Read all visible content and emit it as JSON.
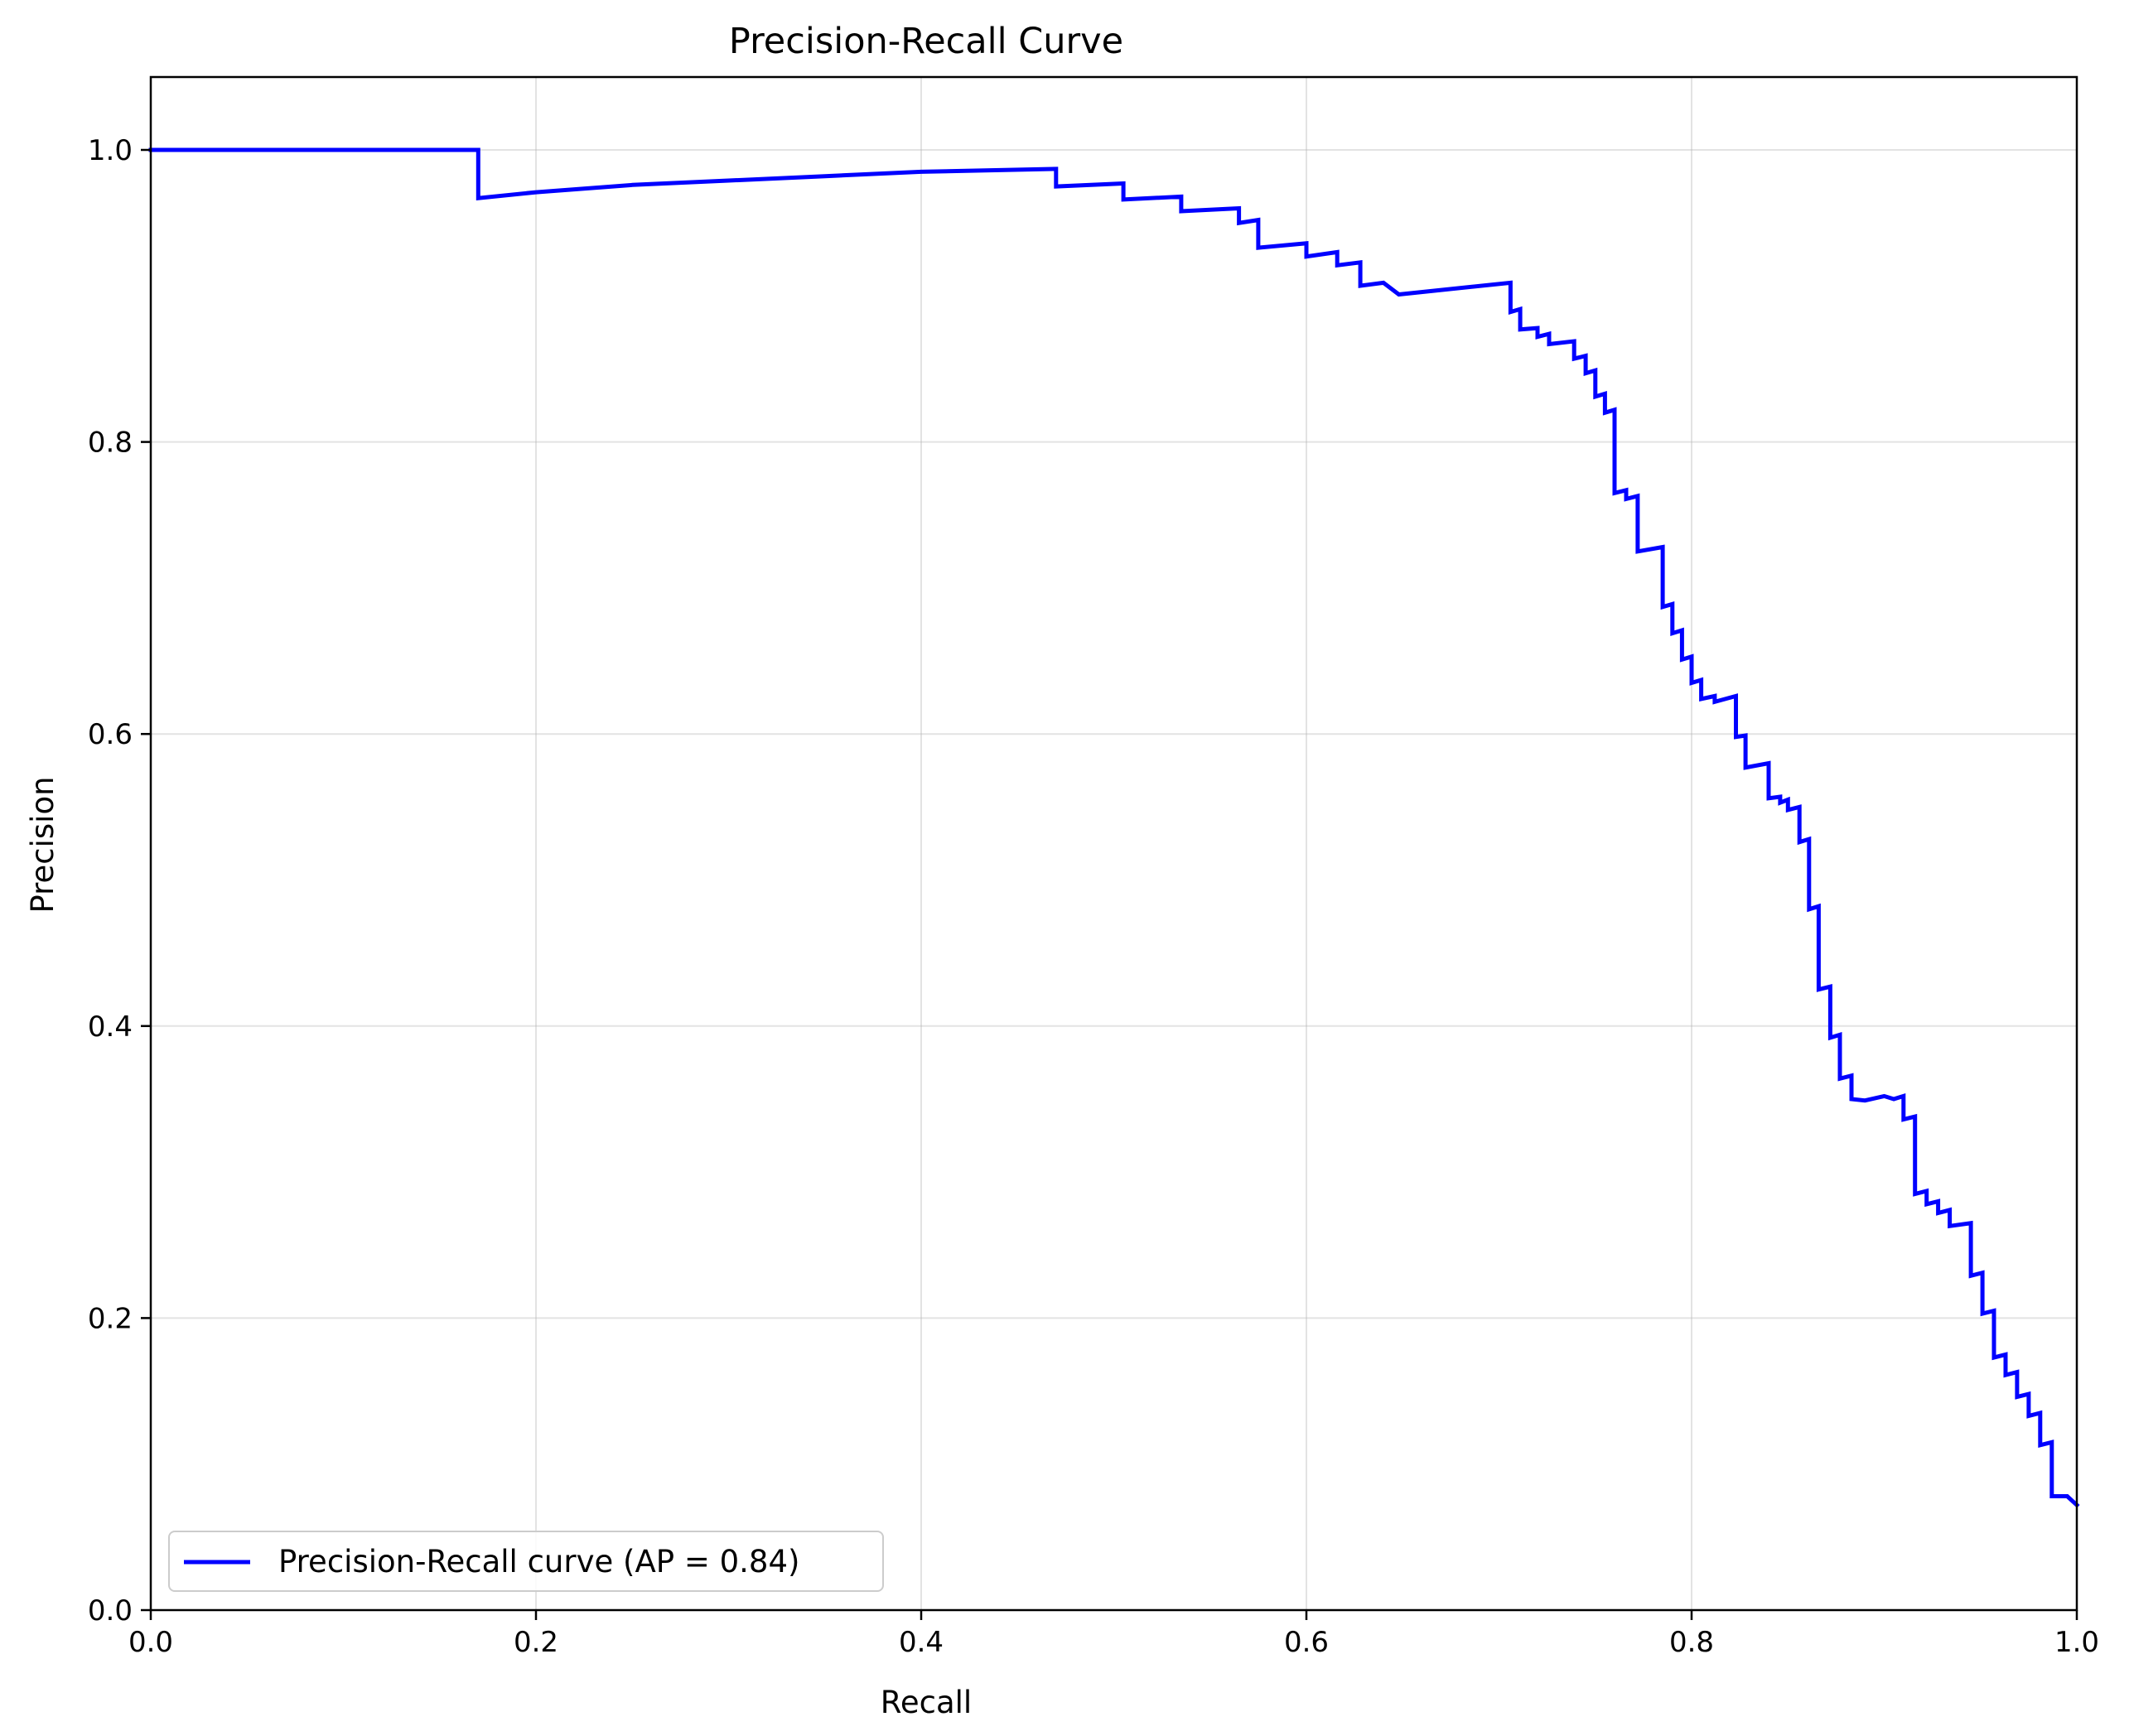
{
  "chart_data": {
    "type": "line",
    "title": "Precision-Recall Curve",
    "xlabel": "Recall",
    "ylabel": "Precision",
    "xlim": [
      0.0,
      1.0
    ],
    "ylim": [
      0.0,
      1.05
    ],
    "xticks": [
      "0.0",
      "0.2",
      "0.4",
      "0.6",
      "0.8",
      "1.0"
    ],
    "yticks": [
      "0.0",
      "0.2",
      "0.4",
      "0.6",
      "0.8",
      "1.0"
    ],
    "grid": true,
    "legend_position": "lower-left",
    "series": [
      {
        "name": "Precision-Recall curve (AP = 0.84)",
        "color": "#0000ff",
        "points": [
          [
            0.0,
            1.0
          ],
          [
            0.17,
            1.0
          ],
          [
            0.17,
            0.967
          ],
          [
            0.2,
            0.971
          ],
          [
            0.25,
            0.976
          ],
          [
            0.3,
            0.979
          ],
          [
            0.35,
            0.982
          ],
          [
            0.4,
            0.985
          ],
          [
            0.47,
            0.987
          ],
          [
            0.47,
            0.975
          ],
          [
            0.505,
            0.977
          ],
          [
            0.505,
            0.966
          ],
          [
            0.535,
            0.968
          ],
          [
            0.535,
            0.958
          ],
          [
            0.565,
            0.96
          ],
          [
            0.565,
            0.95
          ],
          [
            0.575,
            0.952
          ],
          [
            0.575,
            0.933
          ],
          [
            0.6,
            0.936
          ],
          [
            0.6,
            0.927
          ],
          [
            0.616,
            0.93
          ],
          [
            0.616,
            0.921
          ],
          [
            0.628,
            0.923
          ],
          [
            0.628,
            0.907
          ],
          [
            0.64,
            0.909
          ],
          [
            0.648,
            0.901
          ],
          [
            0.706,
            0.909
          ],
          [
            0.706,
            0.889
          ],
          [
            0.711,
            0.891
          ],
          [
            0.711,
            0.877
          ],
          [
            0.72,
            0.878
          ],
          [
            0.72,
            0.872
          ],
          [
            0.726,
            0.874
          ],
          [
            0.726,
            0.867
          ],
          [
            0.739,
            0.869
          ],
          [
            0.739,
            0.857
          ],
          [
            0.745,
            0.859
          ],
          [
            0.745,
            0.847
          ],
          [
            0.75,
            0.849
          ],
          [
            0.75,
            0.831
          ],
          [
            0.755,
            0.833
          ],
          [
            0.755,
            0.82
          ],
          [
            0.76,
            0.822
          ],
          [
            0.76,
            0.765
          ],
          [
            0.766,
            0.767
          ],
          [
            0.766,
            0.761
          ],
          [
            0.772,
            0.763
          ],
          [
            0.772,
            0.725
          ],
          [
            0.785,
            0.728
          ],
          [
            0.785,
            0.687
          ],
          [
            0.79,
            0.689
          ],
          [
            0.79,
            0.669
          ],
          [
            0.795,
            0.671
          ],
          [
            0.795,
            0.651
          ],
          [
            0.8,
            0.653
          ],
          [
            0.8,
            0.635
          ],
          [
            0.805,
            0.637
          ],
          [
            0.805,
            0.624
          ],
          [
            0.812,
            0.626
          ],
          [
            0.812,
            0.622
          ],
          [
            0.823,
            0.626
          ],
          [
            0.823,
            0.598
          ],
          [
            0.828,
            0.599
          ],
          [
            0.828,
            0.577
          ],
          [
            0.84,
            0.58
          ],
          [
            0.84,
            0.556
          ],
          [
            0.846,
            0.557
          ],
          [
            0.846,
            0.553
          ],
          [
            0.85,
            0.555
          ],
          [
            0.85,
            0.548
          ],
          [
            0.856,
            0.55
          ],
          [
            0.856,
            0.526
          ],
          [
            0.861,
            0.528
          ],
          [
            0.861,
            0.48
          ],
          [
            0.866,
            0.482
          ],
          [
            0.866,
            0.425
          ],
          [
            0.872,
            0.427
          ],
          [
            0.872,
            0.392
          ],
          [
            0.877,
            0.394
          ],
          [
            0.877,
            0.364
          ],
          [
            0.883,
            0.366
          ],
          [
            0.883,
            0.35
          ],
          [
            0.89,
            0.349
          ],
          [
            0.9,
            0.352
          ],
          [
            0.905,
            0.35
          ],
          [
            0.91,
            0.352
          ],
          [
            0.91,
            0.336
          ],
          [
            0.916,
            0.338
          ],
          [
            0.916,
            0.285
          ],
          [
            0.922,
            0.287
          ],
          [
            0.922,
            0.278
          ],
          [
            0.928,
            0.28
          ],
          [
            0.928,
            0.272
          ],
          [
            0.934,
            0.274
          ],
          [
            0.934,
            0.263
          ],
          [
            0.945,
            0.265
          ],
          [
            0.945,
            0.229
          ],
          [
            0.951,
            0.231
          ],
          [
            0.951,
            0.203
          ],
          [
            0.957,
            0.205
          ],
          [
            0.957,
            0.173
          ],
          [
            0.963,
            0.175
          ],
          [
            0.963,
            0.161
          ],
          [
            0.969,
            0.163
          ],
          [
            0.969,
            0.146
          ],
          [
            0.975,
            0.148
          ],
          [
            0.975,
            0.133
          ],
          [
            0.981,
            0.135
          ],
          [
            0.981,
            0.113
          ],
          [
            0.987,
            0.115
          ],
          [
            0.987,
            0.078
          ],
          [
            0.995,
            0.078
          ],
          [
            1.0,
            0.072
          ]
        ]
      }
    ]
  }
}
